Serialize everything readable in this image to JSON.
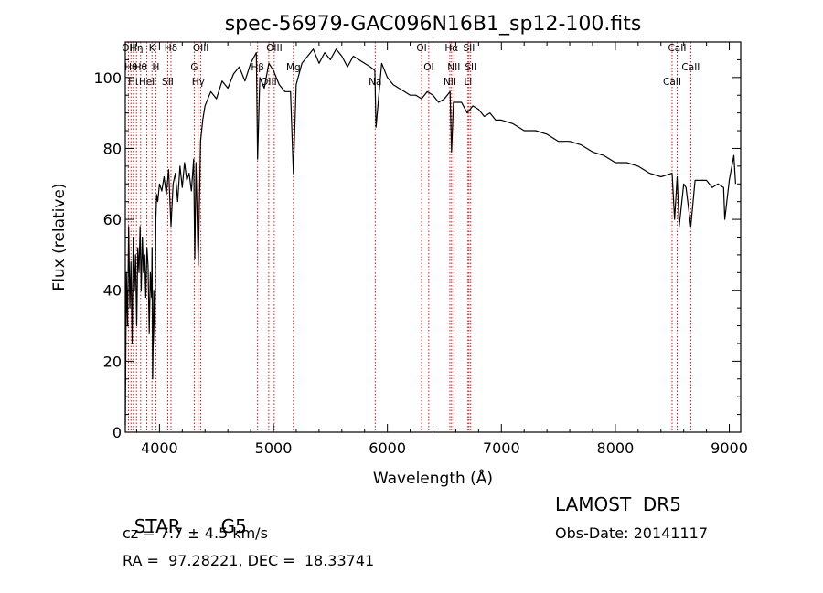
{
  "chart_data": {
    "type": "line",
    "title": "spec-56979-GAC096N16B1_sp12-100.fits",
    "xlabel": "Wavelength (Å)",
    "ylabel": "Flux (relative)",
    "xlim": [
      3700,
      9100
    ],
    "ylim": [
      0,
      110
    ],
    "xticks": [
      4000,
      5000,
      6000,
      7000,
      8000,
      9000
    ],
    "yticks": [
      0,
      20,
      40,
      60,
      80,
      100
    ],
    "grid": false,
    "line_color": "#000000",
    "marker_color": "#cc0000",
    "series": [
      {
        "x": [
          3700,
          3710,
          3720,
          3730,
          3740,
          3750,
          3760,
          3770,
          3780,
          3790,
          3800,
          3810,
          3820,
          3830,
          3840,
          3850,
          3860,
          3870,
          3880,
          3890,
          3900,
          3910,
          3920,
          3930,
          3935,
          3940,
          3950,
          3960,
          3968,
          3975,
          3985,
          4000,
          4020,
          4040,
          4060,
          4080,
          4101,
          4120,
          4140,
          4160,
          4180,
          4200,
          4220,
          4240,
          4260,
          4280,
          4300,
          4310,
          4320,
          4340,
          4360,
          4380,
          4400,
          4450,
          4500,
          4550,
          4600,
          4650,
          4700,
          4750,
          4800,
          4850,
          4861,
          4880,
          4920,
          4960,
          5000,
          5050,
          5100,
          5150,
          5175,
          5200,
          5250,
          5300,
          5350,
          5400,
          5450,
          5500,
          5550,
          5600,
          5650,
          5700,
          5750,
          5800,
          5850,
          5890,
          5900,
          5950,
          6000,
          6050,
          6100,
          6150,
          6200,
          6250,
          6300,
          6350,
          6400,
          6450,
          6500,
          6550,
          6563,
          6580,
          6650,
          6700,
          6750,
          6800,
          6850,
          6900,
          6950,
          7000,
          7100,
          7200,
          7300,
          7400,
          7500,
          7600,
          7700,
          7800,
          7900,
          8000,
          8100,
          8200,
          8300,
          8400,
          8498,
          8520,
          8542,
          8560,
          8600,
          8620,
          8662,
          8700,
          8750,
          8800,
          8850,
          8900,
          8950,
          8960,
          9000,
          9040,
          9055
        ],
        "y": [
          2,
          45,
          30,
          58,
          35,
          48,
          25,
          55,
          40,
          50,
          30,
          52,
          45,
          58,
          40,
          55,
          45,
          50,
          38,
          52,
          47,
          28,
          45,
          38,
          52,
          15,
          40,
          25,
          60,
          67,
          65,
          70,
          68,
          72,
          67,
          74,
          58,
          70,
          73,
          65,
          75,
          69,
          76,
          71,
          73,
          68,
          77,
          49,
          76,
          47,
          82,
          88,
          92,
          96,
          94,
          99,
          97,
          101,
          103,
          99,
          104,
          107,
          77,
          100,
          97,
          104,
          102,
          98,
          96,
          96,
          73,
          98,
          104,
          106,
          108,
          104,
          107,
          105,
          108,
          106,
          103,
          106,
          105,
          104,
          103,
          102,
          86,
          104,
          100,
          98,
          97,
          96,
          95,
          95,
          94,
          96,
          95,
          93,
          94,
          96,
          79,
          93,
          93,
          90,
          92,
          91,
          89,
          90,
          88,
          88,
          87,
          85,
          85,
          84,
          82,
          82,
          81,
          79,
          78,
          76,
          76,
          75,
          73,
          72,
          73,
          60,
          72,
          58,
          70,
          69,
          58,
          71,
          71,
          71,
          69,
          70,
          69,
          60,
          71,
          78,
          70
        ]
      }
    ],
    "line_markers": [
      {
        "x": 3727,
        "label": "OII"
      },
      {
        "x": 3750,
        "label": "Hθ"
      },
      {
        "x": 3771,
        "label": "Hι"
      },
      {
        "x": 3798,
        "label": "Hη"
      },
      {
        "x": 3835,
        "label": "Hθ"
      },
      {
        "x": 3889,
        "label": "HeI"
      },
      {
        "x": 3934,
        "label": "K"
      },
      {
        "x": 3968,
        "label": "H"
      },
      {
        "x": 4073,
        "label": "SII"
      },
      {
        "x": 4101,
        "label": "Hδ"
      },
      {
        "x": 4305,
        "label": "G"
      },
      {
        "x": 4340,
        "label": "Hγ"
      },
      {
        "x": 4363,
        "label": "OIII"
      },
      {
        "x": 4861,
        "label": "Hβ"
      },
      {
        "x": 4959,
        "label": "OIII"
      },
      {
        "x": 5007,
        "label": "OIII"
      },
      {
        "x": 5175,
        "label": "Mg"
      },
      {
        "x": 5893,
        "label": "Na"
      },
      {
        "x": 6300,
        "label": "OI"
      },
      {
        "x": 6363,
        "label": "OI"
      },
      {
        "x": 6548,
        "label": "NII"
      },
      {
        "x": 6563,
        "label": "Hα"
      },
      {
        "x": 6583,
        "label": "NII"
      },
      {
        "x": 6707,
        "label": "Li"
      },
      {
        "x": 6716,
        "label": "SII"
      },
      {
        "x": 6731,
        "label": "SII"
      },
      {
        "x": 8498,
        "label": "CaII"
      },
      {
        "x": 8542,
        "label": "CaII"
      },
      {
        "x": 8662,
        "label": "CaII"
      }
    ]
  },
  "info": {
    "class_label": "STAR",
    "subclass": "G5",
    "survey": "LAMOST  DR5",
    "cz": "cz = 7.7 ± 4.5 km/s",
    "obs_date": "Obs-Date: 20141117",
    "coords": "RA =  97.28221, DEC =  18.33741"
  }
}
